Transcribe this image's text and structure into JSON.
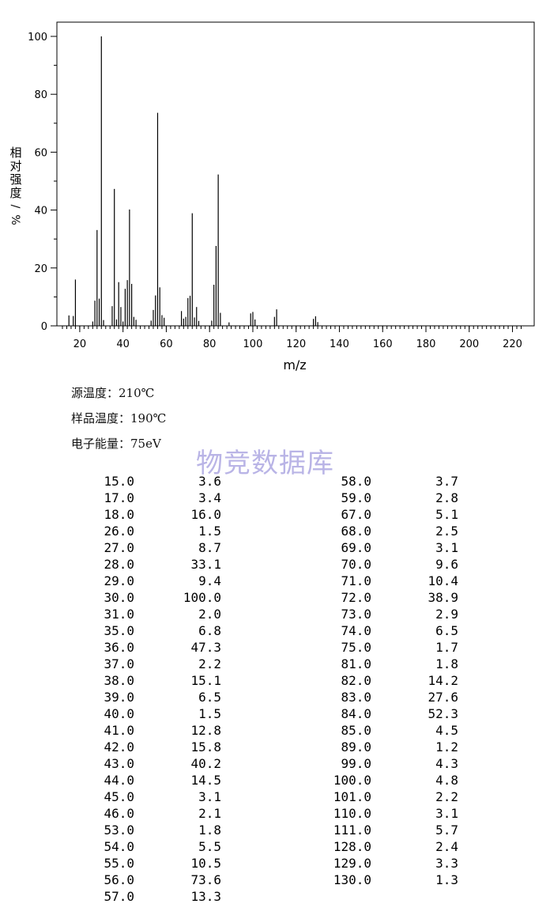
{
  "chart_data": {
    "type": "bar",
    "xlabel": "m/z",
    "ylabel": "相对强度/%",
    "xlim": [
      10,
      225
    ],
    "ylim": [
      0,
      105
    ],
    "x_ticks": [
      "20",
      "40",
      "60",
      "80",
      "100",
      "120",
      "140",
      "160",
      "180",
      "200",
      "220"
    ],
    "y_ticks": [
      "0",
      "20",
      "40",
      "60",
      "80",
      "100"
    ],
    "series": [
      {
        "x": [
          15,
          17,
          18,
          26,
          27,
          28,
          29,
          30,
          31,
          35,
          36,
          37,
          38,
          39,
          40,
          41,
          42,
          43,
          44,
          45,
          46,
          53,
          54,
          55,
          56,
          57,
          58,
          59,
          67,
          68,
          69,
          70,
          71,
          72,
          73,
          74,
          75,
          81,
          82,
          83,
          84,
          85,
          89,
          99,
          100,
          101,
          110,
          111,
          128,
          129,
          130
        ],
        "values": [
          3.6,
          3.4,
          16.0,
          1.5,
          8.7,
          33.1,
          9.4,
          100.0,
          2.0,
          6.8,
          47.3,
          2.2,
          15.1,
          6.5,
          1.5,
          12.8,
          15.8,
          40.2,
          14.5,
          3.1,
          2.1,
          1.8,
          5.5,
          10.5,
          73.6,
          13.3,
          3.7,
          2.8,
          5.1,
          2.5,
          3.1,
          9.6,
          10.4,
          38.9,
          2.9,
          6.5,
          1.7,
          1.8,
          14.2,
          27.6,
          52.3,
          4.5,
          1.2,
          4.3,
          4.8,
          2.2,
          3.1,
          5.7,
          2.4,
          3.3,
          1.3
        ]
      }
    ]
  },
  "conditions": {
    "source_temp": "源温度：210℃",
    "sample_temp": "样品温度：190℃",
    "electron_energy": "电子能量：75eV"
  },
  "watermark": "物竞数据库",
  "peak_table": {
    "left": [
      [
        "15.0",
        "3.6"
      ],
      [
        "17.0",
        "3.4"
      ],
      [
        "18.0",
        "16.0"
      ],
      [
        "26.0",
        "1.5"
      ],
      [
        "27.0",
        "8.7"
      ],
      [
        "28.0",
        "33.1"
      ],
      [
        "29.0",
        "9.4"
      ],
      [
        "30.0",
        "100.0"
      ],
      [
        "31.0",
        "2.0"
      ],
      [
        "35.0",
        "6.8"
      ],
      [
        "36.0",
        "47.3"
      ],
      [
        "37.0",
        "2.2"
      ],
      [
        "38.0",
        "15.1"
      ],
      [
        "39.0",
        "6.5"
      ],
      [
        "40.0",
        "1.5"
      ],
      [
        "41.0",
        "12.8"
      ],
      [
        "42.0",
        "15.8"
      ],
      [
        "43.0",
        "40.2"
      ],
      [
        "44.0",
        "14.5"
      ],
      [
        "45.0",
        "3.1"
      ],
      [
        "46.0",
        "2.1"
      ],
      [
        "53.0",
        "1.8"
      ],
      [
        "54.0",
        "5.5"
      ],
      [
        "55.0",
        "10.5"
      ],
      [
        "56.0",
        "73.6"
      ],
      [
        "57.0",
        "13.3"
      ]
    ],
    "right": [
      [
        "58.0",
        "3.7"
      ],
      [
        "59.0",
        "2.8"
      ],
      [
        "67.0",
        "5.1"
      ],
      [
        "68.0",
        "2.5"
      ],
      [
        "69.0",
        "3.1"
      ],
      [
        "70.0",
        "9.6"
      ],
      [
        "71.0",
        "10.4"
      ],
      [
        "72.0",
        "38.9"
      ],
      [
        "73.0",
        "2.9"
      ],
      [
        "74.0",
        "6.5"
      ],
      [
        "75.0",
        "1.7"
      ],
      [
        "81.0",
        "1.8"
      ],
      [
        "82.0",
        "14.2"
      ],
      [
        "83.0",
        "27.6"
      ],
      [
        "84.0",
        "52.3"
      ],
      [
        "85.0",
        "4.5"
      ],
      [
        "89.0",
        "1.2"
      ],
      [
        "99.0",
        "4.3"
      ],
      [
        "100.0",
        "4.8"
      ],
      [
        "101.0",
        "2.2"
      ],
      [
        "110.0",
        "3.1"
      ],
      [
        "111.0",
        "5.7"
      ],
      [
        "128.0",
        "2.4"
      ],
      [
        "129.0",
        "3.3"
      ],
      [
        "130.0",
        "1.3"
      ]
    ]
  }
}
